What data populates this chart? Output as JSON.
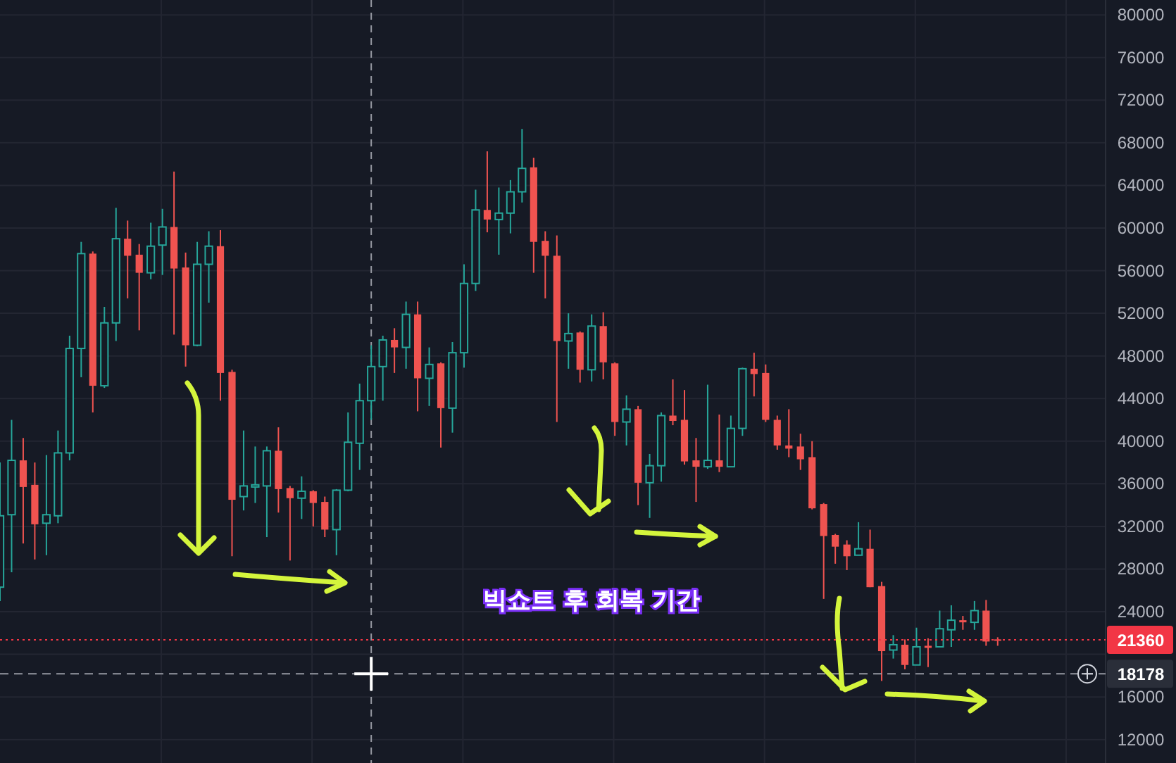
{
  "chart_data": {
    "type": "candlestick",
    "categories": [
      null,
      null,
      null,
      null,
      null,
      null,
      null,
      null,
      null,
      null,
      null,
      null,
      null,
      null,
      null,
      null,
      null,
      null,
      null,
      null,
      null,
      null,
      null,
      null,
      null,
      null,
      null,
      null,
      null,
      null,
      null,
      null,
      null,
      null,
      null,
      null,
      null,
      null,
      null,
      null,
      null,
      null,
      null,
      null,
      null,
      null,
      null,
      null,
      null,
      null,
      null,
      null,
      null,
      null,
      null,
      null,
      null,
      null,
      null,
      null,
      null,
      null,
      null,
      null,
      null,
      null,
      null,
      null,
      null,
      null,
      null,
      null,
      null,
      null,
      null,
      null,
      null,
      null,
      null,
      null,
      null,
      null,
      null,
      null,
      null,
      null,
      null,
      null,
      null,
      null,
      null,
      null,
      null,
      null,
      null,
      null
    ],
    "ohlc": [
      [
        26300,
        38000,
        25000,
        33000
      ],
      [
        33100,
        42000,
        27700,
        38200
      ],
      [
        38200,
        40300,
        30400,
        35700
      ],
      [
        35900,
        38000,
        28900,
        32200
      ],
      [
        32300,
        38700,
        29300,
        33100
      ],
      [
        33000,
        41000,
        32300,
        38900
      ],
      [
        38900,
        49900,
        38200,
        48700
      ],
      [
        48700,
        58700,
        46000,
        57600
      ],
      [
        57600,
        57800,
        42700,
        45200
      ],
      [
        45200,
        52600,
        45000,
        51100
      ],
      [
        51100,
        61900,
        49400,
        59000
      ],
      [
        59000,
        60700,
        53400,
        57400
      ],
      [
        57500,
        58500,
        50400,
        55800
      ],
      [
        55800,
        60500,
        55200,
        58300
      ],
      [
        58400,
        61800,
        55600,
        60100
      ],
      [
        60100,
        65300,
        50000,
        56200
      ],
      [
        56300,
        57700,
        47000,
        49000
      ],
      [
        49000,
        58700,
        48900,
        56600
      ],
      [
        56600,
        59700,
        53000,
        58300
      ],
      [
        58300,
        59800,
        43800,
        46400
      ],
      [
        46500,
        46700,
        29200,
        34500
      ],
      [
        34800,
        41000,
        33500,
        35800
      ],
      [
        35700,
        39500,
        34200,
        35900
      ],
      [
        35800,
        39500,
        31000,
        39100
      ],
      [
        39100,
        41300,
        33300,
        35500
      ],
      [
        35600,
        35800,
        28800,
        34650
      ],
      [
        34650,
        36700,
        32700,
        35300
      ],
      [
        35300,
        35400,
        32000,
        34200
      ],
      [
        34300,
        34800,
        31000,
        31700
      ],
      [
        31700,
        35500,
        29300,
        35400
      ],
      [
        35400,
        42700,
        35300,
        39900
      ],
      [
        39800,
        45400,
        37300,
        43800
      ],
      [
        43800,
        49000,
        42000,
        47000
      ],
      [
        47000,
        49900,
        43800,
        49500
      ],
      [
        49500,
        50600,
        46400,
        48800
      ],
      [
        48800,
        53100,
        46800,
        51900
      ],
      [
        51900,
        53100,
        42800,
        45900
      ],
      [
        45900,
        48800,
        43300,
        47200
      ],
      [
        47300,
        47400,
        39400,
        43100
      ],
      [
        43100,
        49300,
        40800,
        48300
      ],
      [
        48300,
        56600,
        46900,
        54800
      ],
      [
        54800,
        63600,
        54100,
        61700
      ],
      [
        61700,
        67200,
        59600,
        60800
      ],
      [
        60800,
        63800,
        57500,
        61400
      ],
      [
        61400,
        64500,
        59500,
        63400
      ],
      [
        63400,
        69300,
        62400,
        65600
      ],
      [
        65700,
        66600,
        55800,
        58700
      ],
      [
        58800,
        59700,
        53400,
        57400
      ],
      [
        57400,
        59300,
        41800,
        49400
      ],
      [
        49400,
        52000,
        46800,
        50100
      ],
      [
        50200,
        50300,
        45500,
        46700
      ],
      [
        46700,
        51900,
        45600,
        50800
      ],
      [
        50800,
        52100,
        45800,
        47400
      ],
      [
        47300,
        47400,
        40500,
        41800
      ],
      [
        41800,
        44300,
        39600,
        43000
      ],
      [
        43000,
        43300,
        34000,
        36100
      ],
      [
        36100,
        38800,
        32800,
        37700
      ],
      [
        37700,
        42700,
        36200,
        42400
      ],
      [
        42400,
        45800,
        41500,
        41900
      ],
      [
        42000,
        44800,
        37800,
        38100
      ],
      [
        38200,
        40300,
        34300,
        37600
      ],
      [
        37600,
        45300,
        37400,
        38200
      ],
      [
        38200,
        42500,
        37100,
        37600
      ],
      [
        37600,
        42400,
        37600,
        41200
      ],
      [
        41200,
        46900,
        40500,
        46800
      ],
      [
        46800,
        48300,
        44200,
        46300
      ],
      [
        46400,
        47200,
        41800,
        42000
      ],
      [
        42000,
        42400,
        39200,
        39600
      ],
      [
        39600,
        43000,
        38500,
        39300
      ],
      [
        39500,
        40700,
        37300,
        38300
      ],
      [
        38500,
        40000,
        33600,
        33700
      ],
      [
        34100,
        34200,
        25200,
        31100
      ],
      [
        31200,
        31300,
        28500,
        30100
      ],
      [
        30300,
        30700,
        27900,
        29200
      ],
      [
        29300,
        32400,
        29300,
        29900
      ],
      [
        29900,
        31700,
        26300,
        26300
      ],
      [
        26400,
        26800,
        17500,
        20300
      ],
      [
        20400,
        21800,
        19600,
        20900
      ],
      [
        20900,
        21400,
        18600,
        19000
      ],
      [
        19000,
        22500,
        19000,
        20700
      ],
      [
        20800,
        21500,
        18800,
        20600
      ],
      [
        20700,
        24100,
        20700,
        22400
      ],
      [
        22300,
        24600,
        20700,
        23200
      ],
      [
        23200,
        23600,
        22300,
        23000
      ],
      [
        23000,
        25000,
        22300,
        24100
      ],
      [
        24100,
        25100,
        20800,
        21200
      ],
      [
        21400,
        21600,
        20800,
        21360
      ],
      null,
      null,
      null,
      null,
      null,
      null,
      null,
      null,
      null
    ],
    "ylim": [
      9800,
      81400
    ],
    "yticks": [
      12000,
      16000,
      {
        "value": 20000,
        "label": null
      },
      24000,
      28000,
      32000,
      36000,
      40000,
      44000,
      48000,
      52000,
      56000,
      60000,
      64000,
      68000,
      72000,
      76000,
      80000
    ],
    "tick_labels": "y",
    "grid": true,
    "ref_lines": [
      {
        "axis": "y",
        "value": 21360,
        "label": "21360",
        "color": "#f23645",
        "line_style": "dotted"
      },
      {
        "axis": "y",
        "value": 18178,
        "label": "18178",
        "color": "#9598a1",
        "line_style": "dashed"
      }
    ],
    "annotations": [
      "빅쇼트 후 회복 기간"
    ]
  }
}
